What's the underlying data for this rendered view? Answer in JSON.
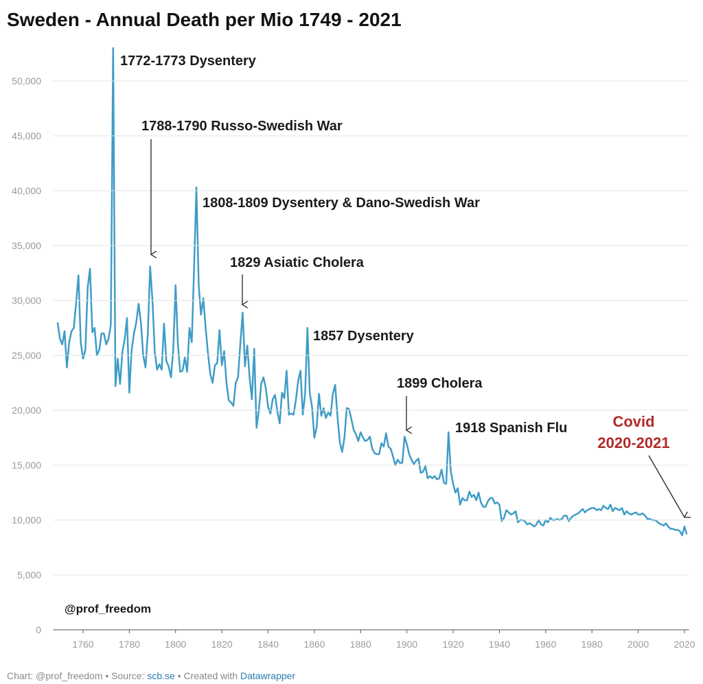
{
  "chart_data": {
    "type": "line",
    "title": "Sweden - Annual Death per Mio 1749 - 2021",
    "x": [
      1749,
      1750,
      1751,
      1752,
      1753,
      1754,
      1755,
      1756,
      1757,
      1758,
      1759,
      1760,
      1761,
      1762,
      1763,
      1764,
      1765,
      1766,
      1767,
      1768,
      1769,
      1770,
      1771,
      1772,
      1773,
      1774,
      1775,
      1776,
      1777,
      1778,
      1779,
      1780,
      1781,
      1782,
      1783,
      1784,
      1785,
      1786,
      1787,
      1788,
      1789,
      1790,
      1791,
      1792,
      1793,
      1794,
      1795,
      1796,
      1797,
      1798,
      1799,
      1800,
      1801,
      1802,
      1803,
      1804,
      1805,
      1806,
      1807,
      1808,
      1809,
      1810,
      1811,
      1812,
      1813,
      1814,
      1815,
      1816,
      1817,
      1818,
      1819,
      1820,
      1821,
      1822,
      1823,
      1824,
      1825,
      1826,
      1827,
      1828,
      1829,
      1830,
      1831,
      1832,
      1833,
      1834,
      1835,
      1836,
      1837,
      1838,
      1839,
      1840,
      1841,
      1842,
      1843,
      1844,
      1845,
      1846,
      1847,
      1848,
      1849,
      1850,
      1851,
      1852,
      1853,
      1854,
      1855,
      1856,
      1857,
      1858,
      1859,
      1860,
      1861,
      1862,
      1863,
      1864,
      1865,
      1866,
      1867,
      1868,
      1869,
      1870,
      1871,
      1872,
      1873,
      1874,
      1875,
      1876,
      1877,
      1878,
      1879,
      1880,
      1881,
      1882,
      1883,
      1884,
      1885,
      1886,
      1887,
      1888,
      1889,
      1890,
      1891,
      1892,
      1893,
      1894,
      1895,
      1896,
      1897,
      1898,
      1899,
      1900,
      1901,
      1902,
      1903,
      1904,
      1905,
      1906,
      1907,
      1908,
      1909,
      1910,
      1911,
      1912,
      1913,
      1914,
      1915,
      1916,
      1917,
      1918,
      1919,
      1920,
      1921,
      1922,
      1923,
      1924,
      1925,
      1926,
      1927,
      1928,
      1929,
      1930,
      1931,
      1932,
      1933,
      1934,
      1935,
      1936,
      1937,
      1938,
      1939,
      1940,
      1941,
      1942,
      1943,
      1944,
      1945,
      1946,
      1947,
      1948,
      1949,
      1950,
      1951,
      1952,
      1953,
      1954,
      1955,
      1956,
      1957,
      1958,
      1959,
      1960,
      1961,
      1962,
      1963,
      1964,
      1965,
      1966,
      1967,
      1968,
      1969,
      1970,
      1971,
      1972,
      1973,
      1974,
      1975,
      1976,
      1977,
      1978,
      1979,
      1980,
      1981,
      1982,
      1983,
      1984,
      1985,
      1986,
      1987,
      1988,
      1989,
      1990,
      1991,
      1992,
      1993,
      1994,
      1995,
      1996,
      1997,
      1998,
      1999,
      2000,
      2001,
      2002,
      2003,
      2004,
      2005,
      2006,
      2007,
      2008,
      2009,
      2010,
      2011,
      2012,
      2013,
      2014,
      2015,
      2016,
      2017,
      2018,
      2019,
      2020,
      2021
    ],
    "values": [
      28000,
      26500,
      26000,
      27200,
      23900,
      26200,
      27200,
      27500,
      29800,
      32300,
      26200,
      24700,
      25500,
      31200,
      32900,
      27100,
      27500,
      25000,
      25500,
      27000,
      27000,
      26000,
      26500,
      27800,
      53000,
      22200,
      24700,
      22400,
      25300,
      26500,
      28400,
      21600,
      25500,
      27000,
      28000,
      29700,
      28000,
      25000,
      23900,
      27000,
      33100,
      30000,
      25300,
      23700,
      24200,
      23700,
      27900,
      24500,
      24000,
      23000,
      25500,
      31400,
      26000,
      23500,
      23600,
      24800,
      23500,
      27500,
      26200,
      33000,
      40300,
      31400,
      28700,
      30200,
      27500,
      25200,
      23300,
      22500,
      24100,
      24300,
      27300,
      24100,
      25400,
      22500,
      20900,
      20700,
      20400,
      22500,
      23000,
      26100,
      28900,
      24000,
      25900,
      23000,
      21000,
      25600,
      18400,
      20000,
      22400,
      23000,
      22000,
      20300,
      19700,
      21000,
      21400,
      19900,
      18800,
      21600,
      21100,
      23600,
      19600,
      19700,
      19600,
      20900,
      22700,
      23600,
      19600,
      21500,
      27500,
      21600,
      20300,
      17500,
      18500,
      21500,
      19500,
      20200,
      19300,
      19800,
      19500,
      21500,
      22300,
      19400,
      17100,
      16200,
      17500,
      20200,
      20100,
      19200,
      18200,
      17800,
      17200,
      18000,
      17500,
      17200,
      17300,
      17600,
      16500,
      16100,
      16000,
      16000,
      17000,
      16700,
      17900,
      16700,
      16500,
      15800,
      15000,
      15500,
      15200,
      15200,
      17600,
      16900,
      16000,
      15500,
      15100,
      15400,
      15600,
      14300,
      14400,
      14900,
      13800,
      14000,
      13800,
      14000,
      13700,
      13800,
      14600,
      13400,
      13300,
      18000,
      14400,
      13300,
      12500,
      12900,
      11400,
      12000,
      11800,
      11800,
      12600,
      12100,
      12300,
      11800,
      12500,
      11600,
      11200,
      11200,
      11700,
      12000,
      12000,
      11500,
      11600,
      11400,
      9900,
      10200,
      10900,
      10700,
      10500,
      10600,
      10800,
      9800,
      10000,
      10000,
      9900,
      9600,
      9700,
      9600,
      9400,
      9600,
      10000,
      9600,
      9500,
      10000,
      9800,
      10200,
      10000,
      10000,
      10100,
      10000,
      10100,
      10400,
      10400,
      9900,
      10200,
      10400,
      10500,
      10600,
      10800,
      11000,
      10700,
      10900,
      11000,
      11100,
      11100,
      10900,
      11000,
      10900,
      11300,
      11100,
      11000,
      11400,
      10800,
      11100,
      11000,
      10900,
      11100,
      10500,
      10800,
      10600,
      10500,
      10600,
      10700,
      10500,
      10500,
      10600,
      10400,
      10100,
      10100,
      10000,
      10000,
      9900,
      9700,
      9600,
      9500,
      9700,
      9400,
      9200,
      9200,
      9100,
      9100,
      9000,
      8600,
      9400,
      8700
    ],
    "color": "#3f9cc6",
    "xlim": [
      1747,
      2022
    ],
    "xticks": [
      1760,
      1780,
      1800,
      1820,
      1840,
      1860,
      1880,
      1900,
      1920,
      1940,
      1960,
      1980,
      2000,
      2020
    ],
    "ylim": [
      0,
      53500
    ],
    "yticks": [
      0,
      {
        "value": 5000,
        "label": "5,000"
      },
      {
        "value": 10000,
        "label": "10,000"
      },
      {
        "value": 15000,
        "label": "15,000"
      },
      {
        "value": 20000,
        "label": "20,000"
      },
      {
        "value": 25000,
        "label": "25,000"
      },
      {
        "value": 30000,
        "label": "30,000"
      },
      {
        "value": 35000,
        "label": "35,000"
      },
      {
        "value": 40000,
        "label": "40,000"
      },
      {
        "value": 45000,
        "label": "45,000"
      },
      {
        "value": 50000,
        "label": "50,000"
      }
    ],
    "grid": true,
    "annotations": [
      "1772-1773 Dysentery",
      "1788-1790 Russo-Swedish War",
      "1808-1809 Dysentery & Dano-Swedish War",
      "1829 Asiatic Cholera",
      "1857 Dysentery",
      "1899 Cholera",
      "1918 Spanish Flu",
      "Covid",
      "2020-2021",
      "@prof_freedom"
    ],
    "footer": [
      "Chart: @prof_freedom • Source: ",
      "scb.se",
      " • Created with ",
      "Datawrapper"
    ]
  }
}
